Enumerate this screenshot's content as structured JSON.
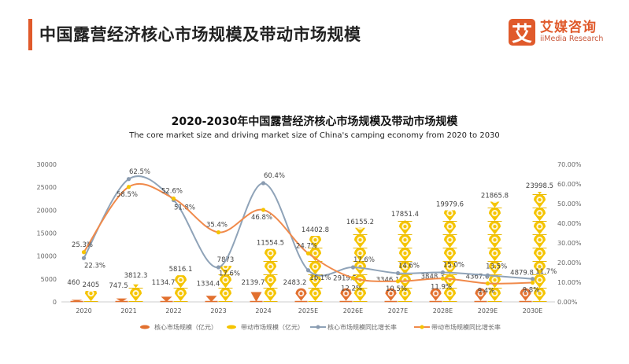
{
  "header": {
    "title": "中国露营经济核心市场规模及带动市场规模"
  },
  "logo": {
    "mark": "艾",
    "name_cn": "艾媒咨询",
    "name_en": "iiMedia Research"
  },
  "colors": {
    "accent": "#e05a2b",
    "core": "#e2702f",
    "driving": "#f5c400",
    "core_growth": "#8fa3b8",
    "driving_growth": "#f08a4b"
  },
  "chart_data": {
    "type": "bar",
    "title": "2020-2030年中国露营经济核心市场规模及带动市场规模",
    "subtitle": "The core market size and driving market size of China's camping economy from 2020 to 2030",
    "categories": [
      "2020",
      "2021",
      "2022",
      "2023",
      "2024",
      "2025E",
      "2026E",
      "2027E",
      "2028E",
      "2029E",
      "2030E"
    ],
    "y_left": {
      "range": [
        0,
        30000
      ],
      "ticks": [
        "0",
        "5000",
        "10000",
        "15000",
        "20000",
        "25000",
        "30000"
      ]
    },
    "y_right": {
      "range": [
        0,
        70
      ],
      "ticks": [
        "0.00%",
        "10.00%",
        "20.00%",
        "30.00%",
        "40.00%",
        "50.00%",
        "60.00%",
        "70.00%"
      ]
    },
    "grid": false,
    "legend_position": "bottom",
    "series": [
      {
        "name": "核心市场规模（亿元）",
        "kind": "pictorial-bar",
        "axis": "left",
        "values": [
          460,
          747.5,
          1134.7,
          1334.4,
          2139.7,
          2483.2,
          2919.5,
          3346.1,
          3848.3,
          4367.6,
          4879.8
        ],
        "labels": [
          "460",
          "747.5",
          "1134.7",
          "1334.4",
          "2139.7",
          "2483.2",
          "2919.5",
          "3346.1",
          "3848.3",
          "4367.6",
          "4879.8"
        ]
      },
      {
        "name": "带动市场规模（亿元）",
        "kind": "pictorial-bar",
        "axis": "left",
        "values": [
          2405,
          3812.3,
          5816.1,
          7873,
          11554.5,
          14402.8,
          16155.2,
          17851.4,
          19979.6,
          21865.8,
          23998.5
        ],
        "labels": [
          "2405",
          "3812.3",
          "5816.1",
          "7873",
          "11554.5",
          "14402.8",
          "16155.2",
          "17851.4",
          "19979.6",
          "21865.8",
          "23998.5"
        ]
      },
      {
        "name": "核心市场规模同比增长率",
        "kind": "line",
        "axis": "right",
        "values": [
          22.3,
          62.5,
          51.8,
          17.6,
          60.4,
          16.1,
          17.6,
          14.6,
          15.0,
          13.5,
          11.7
        ],
        "labels": [
          "22.3%",
          "62.5%",
          "51.8%",
          "17.6%",
          "60.4%",
          "16.1%",
          "17.6%",
          "14.6%",
          "15.0%",
          "13.5%",
          "11.7%"
        ]
      },
      {
        "name": "带动市场规模同比增长率",
        "kind": "line",
        "axis": "right",
        "values": [
          25.3,
          58.5,
          52.6,
          35.4,
          46.8,
          24.7,
          12.2,
          10.5,
          11.9,
          9.4,
          9.8
        ],
        "labels": [
          "25.3%",
          "58.5%",
          "52.6%",
          "35.4%",
          "46.8%",
          "24.7%",
          "12.2%",
          "10.5%",
          "11.9%",
          "9.4%",
          "9.8%"
        ]
      }
    ]
  }
}
